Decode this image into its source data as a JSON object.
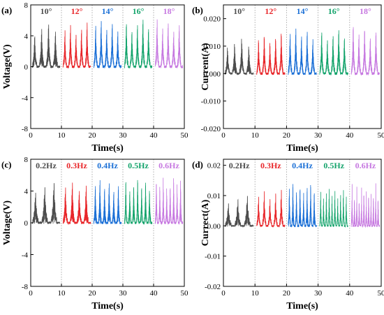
{
  "chart_data": [
    {
      "panel": "(a)",
      "type": "line",
      "xlabel": "Time(s)",
      "ylabel": "Voltage(V)",
      "xlim": [
        0,
        50
      ],
      "ylim": [
        -8,
        8
      ],
      "xticks": [
        0,
        10,
        20,
        30,
        40,
        50
      ],
      "yticks": [
        -8,
        -4,
        0,
        4,
        8
      ],
      "yticklabels": [
        "-8",
        "-4",
        "0",
        "4",
        "8"
      ],
      "grid": false,
      "segment_dividers": [
        10,
        20,
        30,
        40
      ],
      "segments": [
        {
          "label": "10°",
          "color": "#4d4d4d",
          "t_start": 0.5,
          "t_end": 9.5,
          "peaks": 4,
          "max": 6.5,
          "min": -6.0
        },
        {
          "label": "12°",
          "color": "#e8262a",
          "t_start": 10.5,
          "t_end": 19.5,
          "peaks": 5,
          "max": 7.0,
          "min": -6.0
        },
        {
          "label": "14°",
          "color": "#1a6fd6",
          "t_start": 20.5,
          "t_end": 29.5,
          "peaks": 5,
          "max": 7.5,
          "min": -6.5
        },
        {
          "label": "16°",
          "color": "#13a36b",
          "t_start": 30.5,
          "t_end": 39.5,
          "peaks": 5,
          "max": 7.5,
          "min": -7.0
        },
        {
          "label": "18°",
          "color": "#c678e0",
          "t_start": 40.5,
          "t_end": 49.5,
          "peaks": 5,
          "max": 7.5,
          "min": -6.5
        }
      ]
    },
    {
      "panel": "(b)",
      "type": "line",
      "xlabel": "Time(s)",
      "ylabel": "Current(A)",
      "xlim": [
        0,
        50
      ],
      "ylim": [
        -0.02,
        0.025
      ],
      "xticks": [
        0,
        10,
        20,
        30,
        40,
        50
      ],
      "yticks": [
        -0.02,
        -0.01,
        0.0,
        0.01,
        0.02
      ],
      "yticklabels": [
        "-0.020",
        "-0.010",
        "0.000",
        "0.010",
        "0.020"
      ],
      "grid": false,
      "segment_dividers": [
        10,
        20,
        30,
        40
      ],
      "segments": [
        {
          "label": "10°",
          "color": "#4d4d4d",
          "t_start": 0.5,
          "t_end": 9.5,
          "peaks": 4,
          "max": 0.013,
          "min": -0.015
        },
        {
          "label": "12°",
          "color": "#e8262a",
          "t_start": 10.5,
          "t_end": 19.5,
          "peaks": 5,
          "max": 0.017,
          "min": -0.018
        },
        {
          "label": "14°",
          "color": "#1a6fd6",
          "t_start": 20.5,
          "t_end": 29.5,
          "peaks": 5,
          "max": 0.02,
          "min": -0.018
        },
        {
          "label": "16°",
          "color": "#13a36b",
          "t_start": 30.5,
          "t_end": 39.5,
          "peaks": 5,
          "max": 0.02,
          "min": -0.018
        },
        {
          "label": "18°",
          "color": "#c678e0",
          "t_start": 40.5,
          "t_end": 49.5,
          "peaks": 5,
          "max": 0.021,
          "min": -0.02
        }
      ]
    },
    {
      "panel": "(c)",
      "type": "line",
      "xlabel": "Time(s)",
      "ylabel": "Voltage(V)",
      "xlim": [
        0,
        50
      ],
      "ylim": [
        -8,
        8
      ],
      "xticks": [
        0,
        10,
        20,
        30,
        40,
        50
      ],
      "yticks": [
        -8,
        -4,
        0,
        4,
        8
      ],
      "yticklabels": [
        "-8",
        "-4",
        "0",
        "4",
        "8"
      ],
      "grid": false,
      "segment_dividers": [
        10,
        20,
        30,
        40
      ],
      "segments": [
        {
          "label": "0.2Hz",
          "color": "#4d4d4d",
          "t_start": 0.5,
          "t_end": 9.5,
          "peaks": 3,
          "max": 6.0,
          "min": -5.0
        },
        {
          "label": "0.3Hz",
          "color": "#e8262a",
          "t_start": 10.5,
          "t_end": 19.5,
          "peaks": 4,
          "max": 6.5,
          "min": -5.5
        },
        {
          "label": "0.4Hz",
          "color": "#1a6fd6",
          "t_start": 20.5,
          "t_end": 29.5,
          "peaks": 6,
          "max": 6.5,
          "min": -6.0
        },
        {
          "label": "0.5Hz",
          "color": "#13a36b",
          "t_start": 30.5,
          "t_end": 39.5,
          "peaks": 7,
          "max": 6.5,
          "min": -6.5
        },
        {
          "label": "0.6Hz",
          "color": "#c678e0",
          "t_start": 40.5,
          "t_end": 49.5,
          "peaks": 8,
          "max": 6.0,
          "min": -7.0
        }
      ]
    },
    {
      "panel": "(d)",
      "type": "line",
      "xlabel": "Time(s)",
      "ylabel": "Currect(A)",
      "xlim": [
        0,
        50
      ],
      "ylim": [
        -0.02,
        0.022
      ],
      "xticks": [
        0,
        10,
        20,
        30,
        40,
        50
      ],
      "yticks": [
        -0.02,
        -0.01,
        0.0,
        0.01,
        0.02
      ],
      "yticklabels": [
        "-0.02",
        "-0.01",
        "0.00",
        "0.01",
        "0.02"
      ],
      "grid": false,
      "segment_dividers": [
        10,
        20,
        30,
        40
      ],
      "segments": [
        {
          "label": "0.2Hz",
          "color": "#4d4d4d",
          "t_start": 0.5,
          "t_end": 9.5,
          "peaks": 3,
          "max": 0.012,
          "min": -0.009
        },
        {
          "label": "0.3Hz",
          "color": "#e8262a",
          "t_start": 10.5,
          "t_end": 19.5,
          "peaks": 5,
          "max": 0.015,
          "min": -0.011
        },
        {
          "label": "0.4Hz",
          "color": "#1a6fd6",
          "t_start": 20.5,
          "t_end": 29.5,
          "peaks": 8,
          "max": 0.017,
          "min": -0.016
        },
        {
          "label": "0.5Hz",
          "color": "#13a36b",
          "t_start": 30.5,
          "t_end": 39.5,
          "peaks": 10,
          "max": 0.016,
          "min": -0.011
        },
        {
          "label": "0.6Hz",
          "color": "#c678e0",
          "t_start": 40.5,
          "t_end": 49.5,
          "peaks": 12,
          "max": 0.017,
          "min": -0.012
        }
      ]
    }
  ]
}
